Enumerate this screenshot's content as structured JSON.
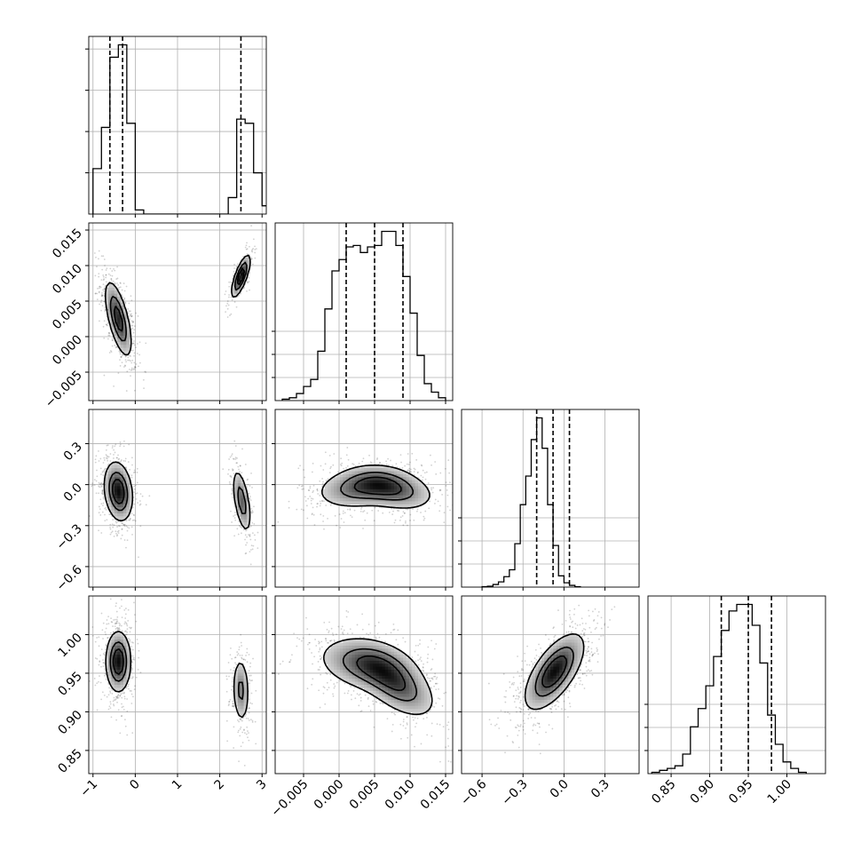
{
  "chart_data": {
    "type": "corner",
    "variables": [
      "",
      "",
      "",
      ""
    ],
    "ranges": [
      [
        -1.1,
        3.1
      ],
      [
        -0.009,
        0.016
      ],
      [
        -0.75,
        0.55
      ],
      [
        0.82,
        1.05
      ]
    ],
    "ticks": [
      [
        -1,
        0,
        1,
        2,
        3
      ],
      [
        -0.005,
        0.0,
        0.005,
        0.01,
        0.015
      ],
      [
        -0.6,
        -0.3,
        0.0,
        0.3
      ],
      [
        0.85,
        0.9,
        0.95,
        1.0
      ]
    ],
    "tick_labels": [
      [
        "−1",
        "0",
        "1",
        "2",
        "3"
      ],
      [
        "−0.005",
        "0.000",
        "0.005",
        "0.010",
        "0.015"
      ],
      [
        "−0.6",
        "−0.3",
        "0.0",
        "0.3"
      ],
      [
        "0.85",
        "0.90",
        "0.95",
        "1.00"
      ]
    ],
    "quantiles": [
      [
        -0.6,
        -0.3,
        2.5
      ],
      [
        0.001,
        0.005,
        0.009
      ],
      [
        -0.2,
        -0.08,
        0.04
      ],
      [
        0.915,
        0.95,
        0.98
      ]
    ],
    "histograms": [
      {
        "edges_start": -1.0,
        "bin_width": 0.2,
        "counts": [
          0.55,
          1.05,
          1.9,
          2.05,
          1.1,
          0.05,
          0,
          0,
          0,
          0,
          0,
          0,
          0,
          0,
          0,
          0,
          0.2,
          1.15,
          1.1,
          0.5,
          0.1
        ]
      },
      {
        "edges_start": -0.008,
        "bin_width": 0.001,
        "counts": [
          0.01,
          0.02,
          0.05,
          0.1,
          0.15,
          0.35,
          0.65,
          0.92,
          1.0,
          1.09,
          1.1,
          1.05,
          1.09,
          1.1,
          1.2,
          1.2,
          1.1,
          0.88,
          0.62,
          0.32,
          0.12,
          0.06,
          0.02
        ]
      },
      {
        "edges_start": -0.6,
        "bin_width": 0.04,
        "counts": [
          0.005,
          0.01,
          0.03,
          0.06,
          0.12,
          0.2,
          0.5,
          0.95,
          1.28,
          1.7,
          1.95,
          1.6,
          0.95,
          0.48,
          0.13,
          0.05,
          0.02,
          0.005
        ]
      },
      {
        "edges_start": 0.825,
        "bin_width": 0.01,
        "counts": [
          0.02,
          0.05,
          0.08,
          0.12,
          0.3,
          0.72,
          1.0,
          1.35,
          1.8,
          2.2,
          2.5,
          2.6,
          2.6,
          2.28,
          1.7,
          0.9,
          0.45,
          0.18,
          0.08,
          0.02
        ]
      }
    ],
    "pairs": [
      {
        "row": 1,
        "col": 0,
        "blobs": [
          {
            "mx": -0.4,
            "my": 0.0025,
            "sx": 0.16,
            "sy": 0.0027,
            "rho": -0.65,
            "w": 0.72
          },
          {
            "mx": 2.5,
            "my": 0.0085,
            "sx": 0.11,
            "sy": 0.0015,
            "rho": 0.75,
            "w": 0.28
          }
        ]
      },
      {
        "row": 2,
        "col": 0,
        "blobs": [
          {
            "mx": -0.4,
            "my": -0.05,
            "sx": 0.17,
            "sy": 0.11,
            "rho": -0.2,
            "w": 0.72
          },
          {
            "mx": 2.52,
            "my": -0.12,
            "sx": 0.11,
            "sy": 0.12,
            "rho": -0.55,
            "w": 0.28
          }
        ]
      },
      {
        "row": 2,
        "col": 1,
        "blobs": [
          {
            "mx": 0.003,
            "my": -0.02,
            "sx": 0.0032,
            "sy": 0.08,
            "rho": 0.25,
            "w": 0.5
          },
          {
            "mx": 0.0075,
            "my": -0.03,
            "sx": 0.003,
            "sy": 0.08,
            "rho": -0.35,
            "w": 0.5
          }
        ]
      },
      {
        "row": 3,
        "col": 0,
        "blobs": [
          {
            "mx": -0.4,
            "my": 0.965,
            "sx": 0.15,
            "sy": 0.02,
            "rho": 0.0,
            "w": 0.72
          },
          {
            "mx": 2.5,
            "my": 0.928,
            "sx": 0.1,
            "sy": 0.022,
            "rho": -0.1,
            "w": 0.28
          }
        ]
      },
      {
        "row": 3,
        "col": 1,
        "blobs": [
          {
            "mx": 0.004,
            "my": 0.962,
            "sx": 0.0035,
            "sy": 0.018,
            "rho": -0.25,
            "w": 0.55
          },
          {
            "mx": 0.0082,
            "my": 0.935,
            "sx": 0.0028,
            "sy": 0.022,
            "rho": -0.55,
            "w": 0.45
          }
        ]
      },
      {
        "row": 3,
        "col": 2,
        "blobs": [
          {
            "mx": -0.07,
            "my": 0.952,
            "sx": 0.11,
            "sy": 0.025,
            "rho": 0.65,
            "w": 1.0
          }
        ]
      }
    ],
    "contour_levels": [
      0.85,
      0.55,
      0.28
    ],
    "grid": true,
    "colors": {
      "hist": "#000000",
      "points": "#000000",
      "contour": "#000000",
      "grid": "#b0b0b0"
    }
  }
}
